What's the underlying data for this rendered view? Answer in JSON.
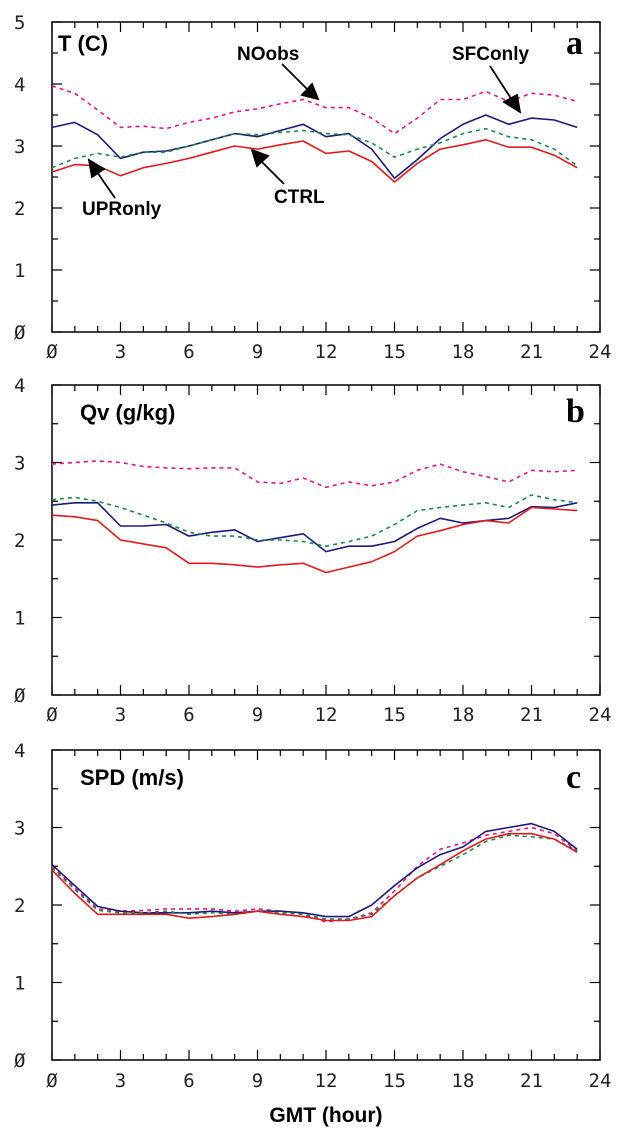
{
  "colors": {
    "CTRL": "#e31a1c",
    "SFConly": "#1f1a7a",
    "UPRonly": "#1a8a52",
    "NOobs": "#e8148c"
  },
  "xlabel": "GMT (hour)",
  "xticklabels": [
    "Ø",
    "3",
    "6",
    "9",
    "12",
    "15",
    "18",
    "21",
    "24"
  ],
  "chart_data": [
    {
      "type": "line",
      "title": "T (C)",
      "panel_letter": "a",
      "xlim": [
        0,
        24
      ],
      "ylim": [
        0,
        5
      ],
      "yticklabels": [
        "Ø",
        "1",
        "2",
        "3",
        "4",
        "5"
      ],
      "x": [
        0,
        1,
        2,
        3,
        4,
        5,
        6,
        7,
        8,
        9,
        10,
        11,
        12,
        13,
        14,
        15,
        16,
        17,
        18,
        19,
        20,
        21,
        22,
        23
      ],
      "series": [
        {
          "name": "NOobs",
          "style": "dashed",
          "values": [
            3.97,
            3.85,
            3.58,
            3.3,
            3.32,
            3.28,
            3.38,
            3.45,
            3.55,
            3.6,
            3.68,
            3.75,
            3.62,
            3.62,
            3.45,
            3.2,
            3.45,
            3.75,
            3.75,
            3.88,
            3.72,
            3.85,
            3.82,
            3.72
          ]
        },
        {
          "name": "SFConly",
          "style": "solid",
          "values": [
            3.3,
            3.38,
            3.18,
            2.8,
            2.9,
            2.92,
            3.0,
            3.1,
            3.2,
            3.15,
            3.25,
            3.35,
            3.15,
            3.2,
            2.95,
            2.48,
            2.78,
            3.12,
            3.35,
            3.5,
            3.35,
            3.45,
            3.42,
            3.3
          ]
        },
        {
          "name": "UPRonly",
          "style": "dashed",
          "values": [
            2.65,
            2.8,
            2.88,
            2.82,
            2.9,
            2.9,
            3.0,
            3.1,
            3.2,
            3.18,
            3.22,
            3.25,
            3.2,
            3.18,
            3.05,
            2.82,
            2.95,
            3.05,
            3.2,
            3.28,
            3.15,
            3.1,
            2.95,
            2.68
          ]
        },
        {
          "name": "CTRL",
          "style": "solid",
          "values": [
            2.58,
            2.7,
            2.68,
            2.52,
            2.65,
            2.72,
            2.8,
            2.9,
            3.0,
            2.95,
            3.02,
            3.08,
            2.88,
            2.92,
            2.75,
            2.42,
            2.72,
            2.95,
            3.02,
            3.1,
            2.98,
            2.98,
            2.85,
            2.65
          ]
        }
      ],
      "annotations": [
        {
          "text": "NOobs",
          "series": "NOobs"
        },
        {
          "text": "SFConly",
          "series": "SFConly"
        },
        {
          "text": "UPRonly",
          "series": "UPRonly"
        },
        {
          "text": "CTRL",
          "series": "CTRL"
        }
      ]
    },
    {
      "type": "line",
      "title": "Qv (g/kg)",
      "panel_letter": "b",
      "xlim": [
        0,
        24
      ],
      "ylim": [
        0,
        4
      ],
      "yticklabels": [
        "Ø",
        "1",
        "2",
        "3",
        "4"
      ],
      "x": [
        0,
        1,
        2,
        3,
        4,
        5,
        6,
        7,
        8,
        9,
        10,
        11,
        12,
        13,
        14,
        15,
        16,
        17,
        18,
        19,
        20,
        21,
        22,
        23
      ],
      "series": [
        {
          "name": "NOobs",
          "style": "dashed",
          "values": [
            2.98,
            3.0,
            3.02,
            3.0,
            2.95,
            2.93,
            2.92,
            2.93,
            2.93,
            2.75,
            2.73,
            2.8,
            2.68,
            2.75,
            2.7,
            2.75,
            2.9,
            2.98,
            2.88,
            2.82,
            2.75,
            2.9,
            2.88,
            2.9
          ]
        },
        {
          "name": "SFConly",
          "style": "solid",
          "values": [
            2.45,
            2.48,
            2.48,
            2.18,
            2.18,
            2.2,
            2.05,
            2.1,
            2.13,
            1.98,
            2.03,
            2.08,
            1.85,
            1.92,
            1.92,
            1.98,
            2.15,
            2.28,
            2.22,
            2.25,
            2.28,
            2.43,
            2.42,
            2.48
          ]
        },
        {
          "name": "UPRonly",
          "style": "dashed",
          "values": [
            2.52,
            2.55,
            2.5,
            2.42,
            2.32,
            2.22,
            2.1,
            2.05,
            2.05,
            2.0,
            2.0,
            1.98,
            1.92,
            1.98,
            2.05,
            2.2,
            2.38,
            2.42,
            2.45,
            2.48,
            2.42,
            2.58,
            2.52,
            2.48
          ]
        },
        {
          "name": "CTRL",
          "style": "solid",
          "values": [
            2.32,
            2.3,
            2.25,
            2.0,
            1.95,
            1.9,
            1.7,
            1.7,
            1.68,
            1.65,
            1.68,
            1.7,
            1.58,
            1.65,
            1.72,
            1.85,
            2.05,
            2.12,
            2.2,
            2.25,
            2.22,
            2.42,
            2.4,
            2.38
          ]
        }
      ]
    },
    {
      "type": "line",
      "title": "SPD (m/s)",
      "panel_letter": "c",
      "xlim": [
        0,
        24
      ],
      "ylim": [
        0,
        4
      ],
      "yticklabels": [
        "Ø",
        "1",
        "2",
        "3",
        "4"
      ],
      "x": [
        0,
        1,
        2,
        3,
        4,
        5,
        6,
        7,
        8,
        9,
        10,
        11,
        12,
        13,
        14,
        15,
        16,
        17,
        18,
        19,
        20,
        21,
        22,
        23
      ],
      "series": [
        {
          "name": "NOobs",
          "style": "dashed",
          "values": [
            2.5,
            2.22,
            1.95,
            1.92,
            1.93,
            1.95,
            1.95,
            1.95,
            1.92,
            1.95,
            1.92,
            1.88,
            1.78,
            1.82,
            1.9,
            2.18,
            2.5,
            2.72,
            2.8,
            2.9,
            2.95,
            3.0,
            2.92,
            2.7
          ]
        },
        {
          "name": "SFConly",
          "style": "solid",
          "values": [
            2.52,
            2.25,
            1.98,
            1.92,
            1.9,
            1.9,
            1.9,
            1.92,
            1.9,
            1.92,
            1.92,
            1.9,
            1.85,
            1.85,
            2.0,
            2.25,
            2.48,
            2.65,
            2.75,
            2.95,
            3.0,
            3.05,
            2.95,
            2.72
          ]
        },
        {
          "name": "UPRonly",
          "style": "dashed",
          "values": [
            2.48,
            2.2,
            1.93,
            1.9,
            1.9,
            1.92,
            1.88,
            1.9,
            1.88,
            1.92,
            1.9,
            1.88,
            1.82,
            1.82,
            1.88,
            2.12,
            2.35,
            2.5,
            2.65,
            2.82,
            2.9,
            2.88,
            2.85,
            2.7
          ]
        },
        {
          "name": "CTRL",
          "style": "solid",
          "values": [
            2.45,
            2.15,
            1.88,
            1.88,
            1.88,
            1.88,
            1.83,
            1.85,
            1.88,
            1.92,
            1.88,
            1.85,
            1.8,
            1.8,
            1.85,
            2.12,
            2.35,
            2.52,
            2.7,
            2.85,
            2.92,
            2.92,
            2.85,
            2.68
          ]
        }
      ]
    }
  ]
}
